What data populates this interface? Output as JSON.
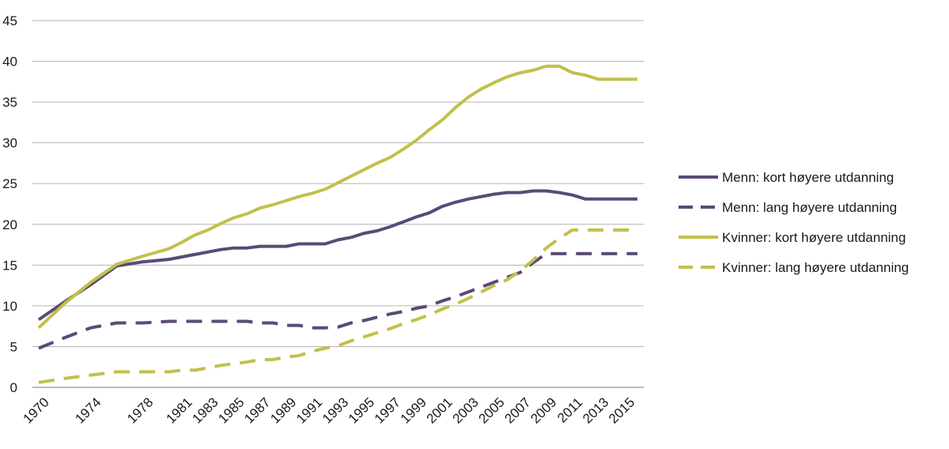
{
  "chart_data": {
    "type": "line",
    "title": "",
    "xlabel": "",
    "ylabel": "",
    "ylim": [
      0,
      45
    ],
    "yticks": [
      0,
      5,
      10,
      15,
      20,
      25,
      30,
      35,
      40,
      45
    ],
    "grid": true,
    "legend": "right",
    "x": [
      1970,
      1972,
      1974,
      1976,
      1978,
      1980,
      1981,
      1982,
      1983,
      1984,
      1985,
      1986,
      1987,
      1988,
      1989,
      1990,
      1991,
      1992,
      1993,
      1994,
      1995,
      1996,
      1997,
      1998,
      1999,
      2000,
      2001,
      2002,
      2003,
      2004,
      2005,
      2006,
      2007,
      2008,
      2009,
      2010,
      2011,
      2012,
      2013,
      2014,
      2015,
      2016
    ],
    "xtick_labels": [
      1970,
      1974,
      1978,
      1981,
      1983,
      1985,
      1987,
      1989,
      1991,
      1993,
      1995,
      1997,
      1999,
      2001,
      2003,
      2005,
      2007,
      2009,
      2011,
      2013,
      2015
    ],
    "series": [
      {
        "name": "Menn: kort høyere utdanning",
        "color": "#5b4a76",
        "dash": "solid",
        "values": [
          8.3,
          10.5,
          12.6,
          14.9,
          15.4,
          15.7,
          16.0,
          16.3,
          16.6,
          16.9,
          17.1,
          17.1,
          17.3,
          17.3,
          17.3,
          17.6,
          17.6,
          17.6,
          18.1,
          18.4,
          18.9,
          19.2,
          19.7,
          20.3,
          20.9,
          21.4,
          22.2,
          22.7,
          23.1,
          23.4,
          23.7,
          23.9,
          23.9,
          24.1,
          24.1,
          23.9,
          23.6,
          23.1,
          23.1,
          23.1,
          23.1,
          23.1
        ]
      },
      {
        "name": "Menn: lang høyere utdanning",
        "color": "#5b4a76",
        "dash": "dashed",
        "values": [
          4.8,
          6.1,
          7.3,
          7.9,
          7.9,
          8.1,
          8.1,
          8.1,
          8.1,
          8.1,
          8.1,
          8.1,
          7.9,
          7.9,
          7.6,
          7.6,
          7.3,
          7.3,
          7.4,
          7.9,
          8.2,
          8.6,
          9.0,
          9.3,
          9.7,
          10.0,
          10.6,
          11.1,
          11.7,
          12.3,
          12.9,
          13.5,
          14.1,
          15.3,
          16.4,
          16.4,
          16.4,
          16.4,
          16.4,
          16.4,
          16.4,
          16.4
        ]
      },
      {
        "name": "Kvinner: kort høyere utdanning",
        "color": "#c2c04c",
        "dash": "solid",
        "values": [
          7.3,
          10.3,
          12.9,
          15.1,
          16.1,
          17.0,
          17.8,
          18.7,
          19.3,
          20.1,
          20.8,
          21.3,
          22.0,
          22.4,
          22.9,
          23.4,
          23.8,
          24.3,
          25.1,
          25.9,
          26.7,
          27.5,
          28.2,
          29.2,
          30.3,
          31.6,
          32.8,
          34.3,
          35.6,
          36.6,
          37.4,
          38.1,
          38.6,
          38.9,
          39.4,
          39.4,
          38.6,
          38.3,
          37.8,
          37.8,
          37.8,
          37.8
        ]
      },
      {
        "name": "Kvinner: lang høyere utdanning",
        "color": "#c2c04c",
        "dash": "dashed",
        "values": [
          0.6,
          1.1,
          1.5,
          1.9,
          1.9,
          1.9,
          2.1,
          2.1,
          2.4,
          2.7,
          2.9,
          3.1,
          3.4,
          3.4,
          3.7,
          3.9,
          4.4,
          4.8,
          5.1,
          5.7,
          6.2,
          6.7,
          7.2,
          7.8,
          8.3,
          8.9,
          9.6,
          10.2,
          10.9,
          11.7,
          12.5,
          13.2,
          14.3,
          15.6,
          17.1,
          18.3,
          19.3,
          19.3,
          19.3,
          19.3,
          19.3,
          19.3
        ]
      }
    ]
  }
}
